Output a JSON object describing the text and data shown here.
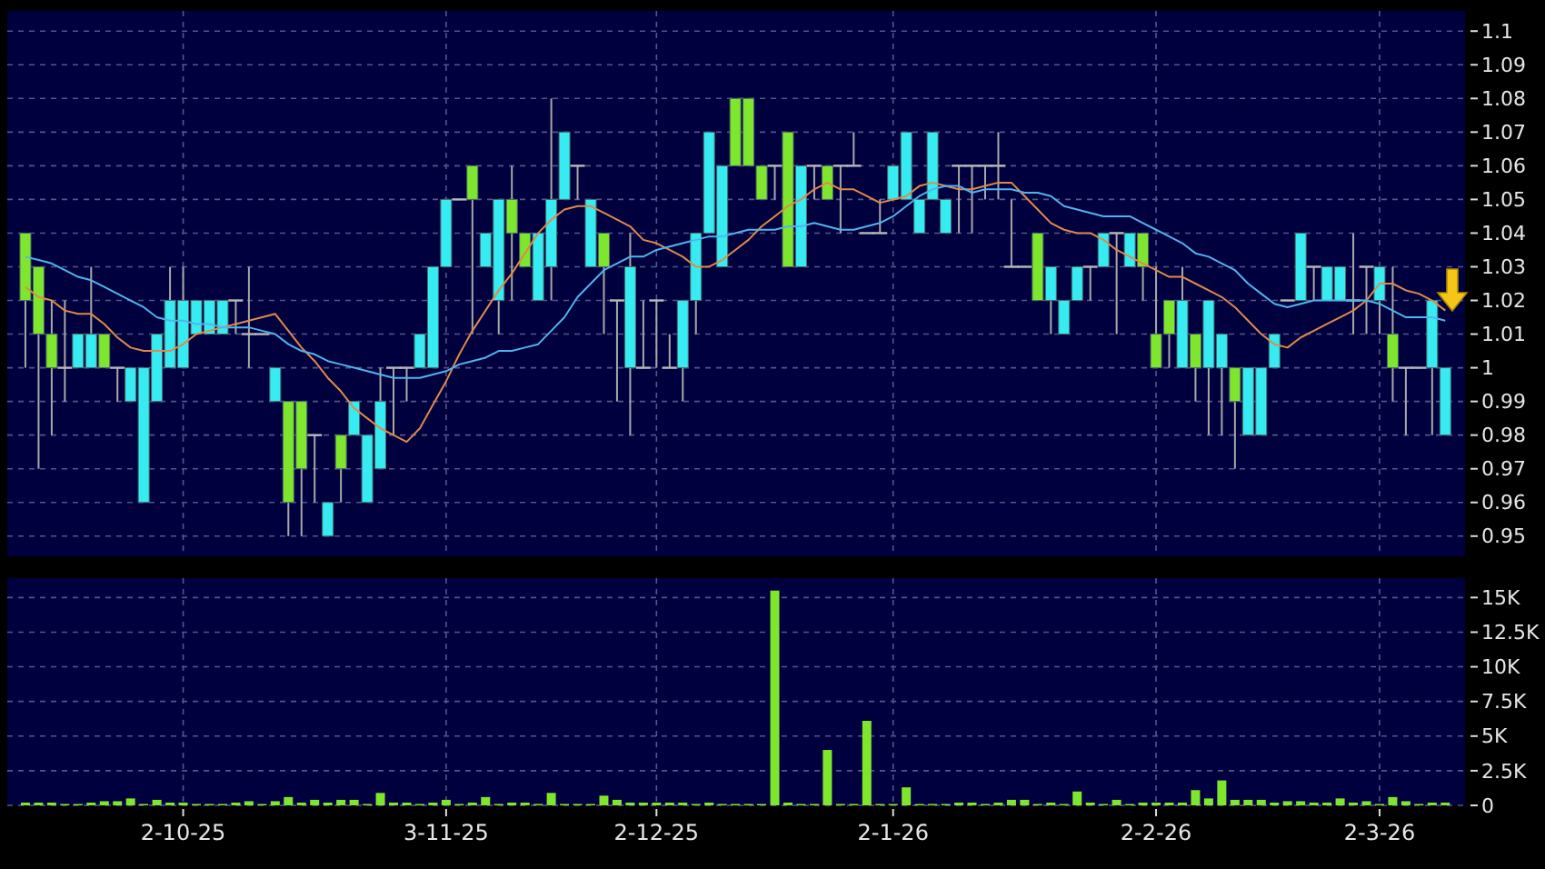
{
  "chart_data": [
    {
      "type": "candlestick",
      "categories": [
        null,
        null,
        null,
        null,
        null,
        null,
        null,
        null,
        null,
        null,
        null,
        null,
        null,
        null,
        null,
        null,
        null,
        null,
        null,
        null,
        null,
        null,
        null,
        null,
        null,
        null,
        null,
        null,
        null,
        null,
        null,
        null,
        null,
        null,
        null,
        null,
        null,
        null,
        null,
        null,
        null,
        null,
        null,
        null,
        null,
        null,
        null,
        null,
        null,
        null,
        null,
        null,
        null,
        null,
        null,
        null,
        null,
        null,
        null,
        null,
        null,
        null,
        null,
        null,
        null,
        null,
        null,
        null,
        null,
        null,
        null,
        null,
        null,
        null,
        null,
        null,
        null,
        null,
        null,
        null,
        null,
        null,
        null,
        null,
        null,
        null,
        null,
        null,
        null,
        null,
        null,
        null,
        null,
        null,
        null,
        null,
        null,
        null,
        null,
        null,
        null,
        null,
        null,
        null,
        null,
        null,
        null,
        null,
        null
      ],
      "ohlc": [
        [
          1.04,
          1.04,
          1.0,
          1.02
        ],
        [
          1.03,
          1.03,
          0.97,
          1.01
        ],
        [
          1.01,
          1.02,
          0.98,
          1.0
        ],
        [
          1.0,
          1.02,
          0.99,
          1.0
        ],
        [
          1.0,
          1.01,
          1.0,
          1.01
        ],
        [
          1.0,
          1.03,
          1.0,
          1.01
        ],
        [
          1.01,
          1.01,
          1.0,
          1.0
        ],
        [
          1.0,
          1.0,
          0.99,
          1.0
        ],
        [
          0.99,
          1.0,
          0.99,
          1.0
        ],
        [
          0.96,
          1.0,
          0.96,
          1.0
        ],
        [
          0.99,
          1.01,
          0.99,
          1.01
        ],
        [
          1.0,
          1.03,
          1.0,
          1.02
        ],
        [
          1.0,
          1.03,
          1.0,
          1.02
        ],
        [
          1.01,
          1.02,
          1.01,
          1.02
        ],
        [
          1.01,
          1.02,
          1.01,
          1.02
        ],
        [
          1.01,
          1.02,
          1.01,
          1.02
        ],
        [
          1.02,
          1.02,
          1.01,
          1.02
        ],
        [
          1.01,
          1.03,
          1.0,
          1.01
        ],
        [
          1.01,
          1.01,
          1.01,
          1.01
        ],
        [
          0.99,
          1.0,
          0.99,
          1.0
        ],
        [
          0.99,
          0.99,
          0.95,
          0.96
        ],
        [
          0.99,
          0.99,
          0.95,
          0.97
        ],
        [
          0.98,
          0.98,
          0.96,
          0.98
        ],
        [
          0.95,
          0.96,
          0.95,
          0.96
        ],
        [
          0.98,
          0.98,
          0.96,
          0.97
        ],
        [
          0.98,
          0.99,
          0.98,
          0.99
        ],
        [
          0.96,
          0.98,
          0.96,
          0.98
        ],
        [
          0.97,
          1.0,
          0.97,
          0.99
        ],
        [
          1.0,
          1.0,
          0.98,
          1.0
        ],
        [
          1.0,
          1.0,
          0.99,
          1.0
        ],
        [
          1.0,
          1.01,
          1.0,
          1.01
        ],
        [
          1.0,
          1.03,
          1.0,
          1.03
        ],
        [
          1.03,
          1.05,
          1.03,
          1.05
        ],
        [
          1.05,
          1.05,
          1.05,
          1.05
        ],
        [
          1.06,
          1.06,
          1.01,
          1.05
        ],
        [
          1.03,
          1.04,
          1.03,
          1.04
        ],
        [
          1.02,
          1.05,
          1.01,
          1.05
        ],
        [
          1.05,
          1.06,
          1.02,
          1.04
        ],
        [
          1.04,
          1.04,
          1.03,
          1.03
        ],
        [
          1.02,
          1.04,
          1.02,
          1.04
        ],
        [
          1.03,
          1.08,
          1.02,
          1.05
        ],
        [
          1.05,
          1.07,
          1.05,
          1.07
        ],
        [
          1.06,
          1.06,
          1.05,
          1.06
        ],
        [
          1.03,
          1.05,
          1.03,
          1.05
        ],
        [
          1.04,
          1.04,
          1.01,
          1.03
        ],
        [
          1.02,
          1.02,
          0.99,
          1.02
        ],
        [
          1.0,
          1.04,
          0.98,
          1.03
        ],
        [
          1.0,
          1.02,
          1.0,
          1.0
        ],
        [
          1.02,
          1.02,
          1.0,
          1.02
        ],
        [
          1.0,
          1.01,
          1.0,
          1.0
        ],
        [
          1.0,
          1.02,
          0.99,
          1.02
        ],
        [
          1.02,
          1.04,
          1.01,
          1.04
        ],
        [
          1.04,
          1.07,
          1.04,
          1.07
        ],
        [
          1.03,
          1.06,
          1.03,
          1.06
        ],
        [
          1.08,
          1.08,
          1.06,
          1.06
        ],
        [
          1.08,
          1.08,
          1.06,
          1.06
        ],
        [
          1.06,
          1.06,
          1.05,
          1.05
        ],
        [
          1.06,
          1.06,
          1.05,
          1.06
        ],
        [
          1.07,
          1.07,
          1.03,
          1.03
        ],
        [
          1.03,
          1.06,
          1.03,
          1.06
        ],
        [
          1.06,
          1.06,
          1.05,
          1.06
        ],
        [
          1.06,
          1.06,
          1.05,
          1.05
        ],
        [
          1.06,
          1.06,
          1.04,
          1.06
        ],
        [
          1.06,
          1.07,
          1.06,
          1.06
        ],
        [
          1.04,
          1.04,
          1.04,
          1.04
        ],
        [
          1.04,
          1.05,
          1.04,
          1.04
        ],
        [
          1.05,
          1.06,
          1.05,
          1.06
        ],
        [
          1.05,
          1.07,
          1.05,
          1.07
        ],
        [
          1.04,
          1.05,
          1.04,
          1.05
        ],
        [
          1.05,
          1.07,
          1.05,
          1.07
        ],
        [
          1.04,
          1.05,
          1.04,
          1.05
        ],
        [
          1.06,
          1.06,
          1.04,
          1.06
        ],
        [
          1.06,
          1.06,
          1.04,
          1.06
        ],
        [
          1.06,
          1.06,
          1.05,
          1.06
        ],
        [
          1.06,
          1.07,
          1.05,
          1.06
        ],
        [
          1.03,
          1.05,
          1.03,
          1.03
        ],
        [
          1.03,
          1.03,
          1.03,
          1.03
        ],
        [
          1.04,
          1.04,
          1.02,
          1.02
        ],
        [
          1.02,
          1.03,
          1.01,
          1.03
        ],
        [
          1.01,
          1.02,
          1.01,
          1.02
        ],
        [
          1.02,
          1.03,
          1.02,
          1.03
        ],
        [
          1.03,
          1.03,
          1.02,
          1.03
        ],
        [
          1.03,
          1.04,
          1.03,
          1.04
        ],
        [
          1.04,
          1.04,
          1.01,
          1.04
        ],
        [
          1.03,
          1.04,
          1.03,
          1.04
        ],
        [
          1.04,
          1.04,
          1.02,
          1.03
        ],
        [
          1.01,
          1.03,
          1.0,
          1.0
        ],
        [
          1.02,
          1.02,
          1.0,
          1.01
        ],
        [
          1.0,
          1.03,
          1.0,
          1.02
        ],
        [
          1.01,
          1.01,
          0.99,
          1.0
        ],
        [
          1.0,
          1.02,
          0.98,
          1.02
        ],
        [
          1.0,
          1.01,
          0.98,
          1.01
        ],
        [
          1.0,
          1.0,
          0.97,
          0.99
        ],
        [
          0.98,
          1.0,
          0.98,
          1.0
        ],
        [
          0.98,
          1.0,
          0.98,
          1.0
        ],
        [
          1.0,
          1.01,
          1.0,
          1.01
        ],
        [
          1.02,
          1.02,
          1.02,
          1.02
        ],
        [
          1.02,
          1.04,
          1.02,
          1.04
        ],
        [
          1.03,
          1.03,
          1.02,
          1.03
        ],
        [
          1.02,
          1.03,
          1.02,
          1.03
        ],
        [
          1.02,
          1.03,
          1.02,
          1.03
        ],
        [
          1.02,
          1.04,
          1.01,
          1.02
        ],
        [
          1.03,
          1.03,
          1.01,
          1.03
        ],
        [
          1.02,
          1.03,
          1.01,
          1.03
        ],
        [
          1.01,
          1.03,
          0.99,
          1.0
        ],
        [
          1.0,
          1.0,
          0.98,
          1.0
        ],
        [
          1.0,
          1.0,
          1.0,
          1.0
        ],
        [
          1.0,
          1.02,
          0.98,
          1.02
        ],
        [
          0.98,
          1.0,
          0.98,
          1.0
        ]
      ],
      "colors": [
        "#7fe62e",
        "#7fe62e",
        "#7fe62e",
        "#b8b8b8",
        "#36ecf2",
        "#36ecf2",
        "#7fe62e",
        "#b8b8b8",
        "#36ecf2",
        "#36ecf2",
        "#36ecf2",
        "#36ecf2",
        "#36ecf2",
        "#36ecf2",
        "#36ecf2",
        "#36ecf2",
        "#b8b8b8",
        "#b8b8b8",
        "#b8b8b8",
        "#36ecf2",
        "#7fe62e",
        "#7fe62e",
        "#b8b8b8",
        "#36ecf2",
        "#7fe62e",
        "#36ecf2",
        "#36ecf2",
        "#36ecf2",
        "#b8b8b8",
        "#b8b8b8",
        "#36ecf2",
        "#36ecf2",
        "#36ecf2",
        "#b8b8b8",
        "#7fe62e",
        "#36ecf2",
        "#36ecf2",
        "#7fe62e",
        "#7fe62e",
        "#36ecf2",
        "#36ecf2",
        "#36ecf2",
        "#b8b8b8",
        "#36ecf2",
        "#7fe62e",
        "#b8b8b8",
        "#36ecf2",
        "#b8b8b8",
        "#b8b8b8",
        "#b8b8b8",
        "#36ecf2",
        "#36ecf2",
        "#36ecf2",
        "#36ecf2",
        "#7fe62e",
        "#7fe62e",
        "#7fe62e",
        "#b8b8b8",
        "#7fe62e",
        "#36ecf2",
        "#b8b8b8",
        "#7fe62e",
        "#b8b8b8",
        "#b8b8b8",
        "#b8b8b8",
        "#b8b8b8",
        "#36ecf2",
        "#36ecf2",
        "#36ecf2",
        "#36ecf2",
        "#36ecf2",
        "#b8b8b8",
        "#b8b8b8",
        "#b8b8b8",
        "#b8b8b8",
        "#b8b8b8",
        "#b8b8b8",
        "#7fe62e",
        "#36ecf2",
        "#36ecf2",
        "#36ecf2",
        "#b8b8b8",
        "#36ecf2",
        "#b8b8b8",
        "#36ecf2",
        "#7fe62e",
        "#7fe62e",
        "#7fe62e",
        "#36ecf2",
        "#7fe62e",
        "#36ecf2",
        "#36ecf2",
        "#7fe62e",
        "#36ecf2",
        "#36ecf2",
        "#36ecf2",
        "#b8b8b8",
        "#36ecf2",
        "#b8b8b8",
        "#36ecf2",
        "#36ecf2",
        "#b8b8b8",
        "#b8b8b8",
        "#36ecf2",
        "#7fe62e",
        "#b8b8b8",
        "#b8b8b8",
        "#36ecf2",
        "#36ecf2"
      ],
      "series": [
        {
          "type": "line",
          "color": "#e0894a",
          "values": [
            1.024,
            1.021,
            1.02,
            1.017,
            1.016,
            1.016,
            1.013,
            1.009,
            1.006,
            1.005,
            1.005,
            1.005,
            1.007,
            1.01,
            1.011,
            1.012,
            1.013,
            1.014,
            1.015,
            1.016,
            1.011,
            1.006,
            1.002,
            0.997,
            0.993,
            0.988,
            0.985,
            0.982,
            0.98,
            0.978,
            0.982,
            0.989,
            0.996,
            1.004,
            1.011,
            1.017,
            1.023,
            1.028,
            1.034,
            1.04,
            1.044,
            1.047,
            1.048,
            1.048,
            1.046,
            1.044,
            1.042,
            1.038,
            1.037,
            1.035,
            1.033,
            1.03,
            1.03,
            1.032,
            1.035,
            1.038,
            1.042,
            1.045,
            1.048,
            1.05,
            1.053,
            1.055,
            1.053,
            1.053,
            1.051,
            1.049,
            1.05,
            1.051,
            1.054,
            1.055,
            1.054,
            1.053,
            1.053,
            1.054,
            1.055,
            1.055,
            1.051,
            1.047,
            1.043,
            1.041,
            1.04,
            1.04,
            1.038,
            1.035,
            1.033,
            1.031,
            1.029,
            1.027,
            1.027,
            1.025,
            1.023,
            1.021,
            1.018,
            1.014,
            1.01,
            1.007,
            1.006,
            1.009,
            1.011,
            1.013,
            1.015,
            1.017,
            1.02,
            1.025,
            1.025,
            1.023,
            1.022,
            1.02,
            1.017
          ]
        },
        {
          "type": "line",
          "color": "#4fb4ee",
          "values": [
            1.033,
            1.032,
            1.031,
            1.029,
            1.027,
            1.026,
            1.024,
            1.022,
            1.02,
            1.018,
            1.015,
            1.014,
            1.014,
            1.013,
            1.013,
            1.012,
            1.012,
            1.012,
            1.011,
            1.01,
            1.007,
            1.005,
            1.004,
            1.002,
            1.001,
            1,
            0.999,
            0.998,
            0.997,
            0.997,
            0.997,
            0.998,
            0.999,
            1.001,
            1.002,
            1.003,
            1.005,
            1.005,
            1.006,
            1.007,
            1.011,
            1.015,
            1.021,
            1.025,
            1.029,
            1.031,
            1.033,
            1.033,
            1.035,
            1.036,
            1.037,
            1.038,
            1.039,
            1.039,
            1.04,
            1.041,
            1.041,
            1.041,
            1.042,
            1.042,
            1.043,
            1.042,
            1.041,
            1.041,
            1.042,
            1.043,
            1.045,
            1.048,
            1.051,
            1.053,
            1.054,
            1.054,
            1.052,
            1.053,
            1.053,
            1.053,
            1.052,
            1.052,
            1.051,
            1.048,
            1.047,
            1.046,
            1.045,
            1.045,
            1.045,
            1.043,
            1.041,
            1.039,
            1.037,
            1.034,
            1.033,
            1.031,
            1.029,
            1.025,
            1.022,
            1.019,
            1.018,
            1.019,
            1.02,
            1.02,
            1.02,
            1.02,
            1.02,
            1.019,
            1.017,
            1.015,
            1.015,
            1.015,
            1.014
          ]
        }
      ],
      "ylim": [
        0.944,
        1.106
      ],
      "yticks": [
        0.95,
        0.96,
        0.97,
        0.98,
        0.99,
        1,
        1.01,
        1.02,
        1.03,
        1.04,
        1.05,
        1.06,
        1.07,
        1.08,
        1.09,
        1.1
      ],
      "grid": true,
      "tick_labels": "y"
    },
    {
      "type": "bar",
      "categories": [
        null,
        null,
        null,
        null,
        null,
        null,
        null,
        null,
        null,
        null,
        null,
        null,
        "2-10-25",
        null,
        null,
        null,
        null,
        null,
        null,
        null,
        null,
        null,
        null,
        null,
        null,
        null,
        null,
        null,
        null,
        null,
        null,
        null,
        "3-11-25",
        null,
        null,
        null,
        null,
        null,
        null,
        null,
        null,
        null,
        null,
        null,
        null,
        null,
        null,
        null,
        "2-12-25",
        null,
        null,
        null,
        null,
        null,
        null,
        null,
        null,
        null,
        null,
        null,
        null,
        null,
        null,
        null,
        null,
        null,
        "2-1-26",
        null,
        null,
        null,
        null,
        null,
        null,
        null,
        null,
        null,
        null,
        null,
        null,
        null,
        null,
        null,
        null,
        null,
        null,
        null,
        "2-2-26",
        null,
        null,
        null,
        null,
        null,
        null,
        null,
        null,
        null,
        null,
        null,
        null,
        null,
        null,
        null,
        null,
        "2-3-26",
        null,
        null,
        null,
        null,
        null
      ],
      "values": [
        200,
        200,
        200,
        100,
        100,
        200,
        300,
        300,
        500,
        100,
        400,
        200,
        200,
        100,
        100,
        100,
        200,
        300,
        100,
        300,
        600,
        200,
        400,
        200,
        400,
        400,
        100,
        900,
        200,
        200,
        100,
        200,
        400,
        100,
        200,
        600,
        100,
        200,
        200,
        100,
        900,
        100,
        100,
        100,
        700,
        400,
        200,
        200,
        200,
        200,
        200,
        100,
        200,
        100,
        100,
        100,
        100,
        15500,
        200,
        100,
        100,
        4000,
        100,
        100,
        6100,
        100,
        100,
        1300,
        100,
        100,
        100,
        200,
        200,
        100,
        200,
        400,
        400,
        100,
        200,
        100,
        1000,
        200,
        100,
        400,
        100,
        200,
        200,
        200,
        200,
        1100,
        500,
        1800,
        400,
        400,
        400,
        200,
        300,
        300,
        200,
        200,
        500,
        200,
        300,
        100,
        600,
        300,
        100,
        200,
        200
      ],
      "color": "#7fe62e",
      "ylim": [
        0,
        16400
      ],
      "yticks": [
        0,
        {
          "value": 2500,
          "label": "2.5K"
        },
        {
          "value": 5000,
          "label": "5K"
        },
        {
          "value": 7500,
          "label": "7.5K"
        },
        {
          "value": 10000,
          "label": "10K"
        },
        {
          "value": 12500,
          "label": "12.5K"
        },
        {
          "value": 15000,
          "label": "15K"
        }
      ],
      "grid": true
    }
  ]
}
